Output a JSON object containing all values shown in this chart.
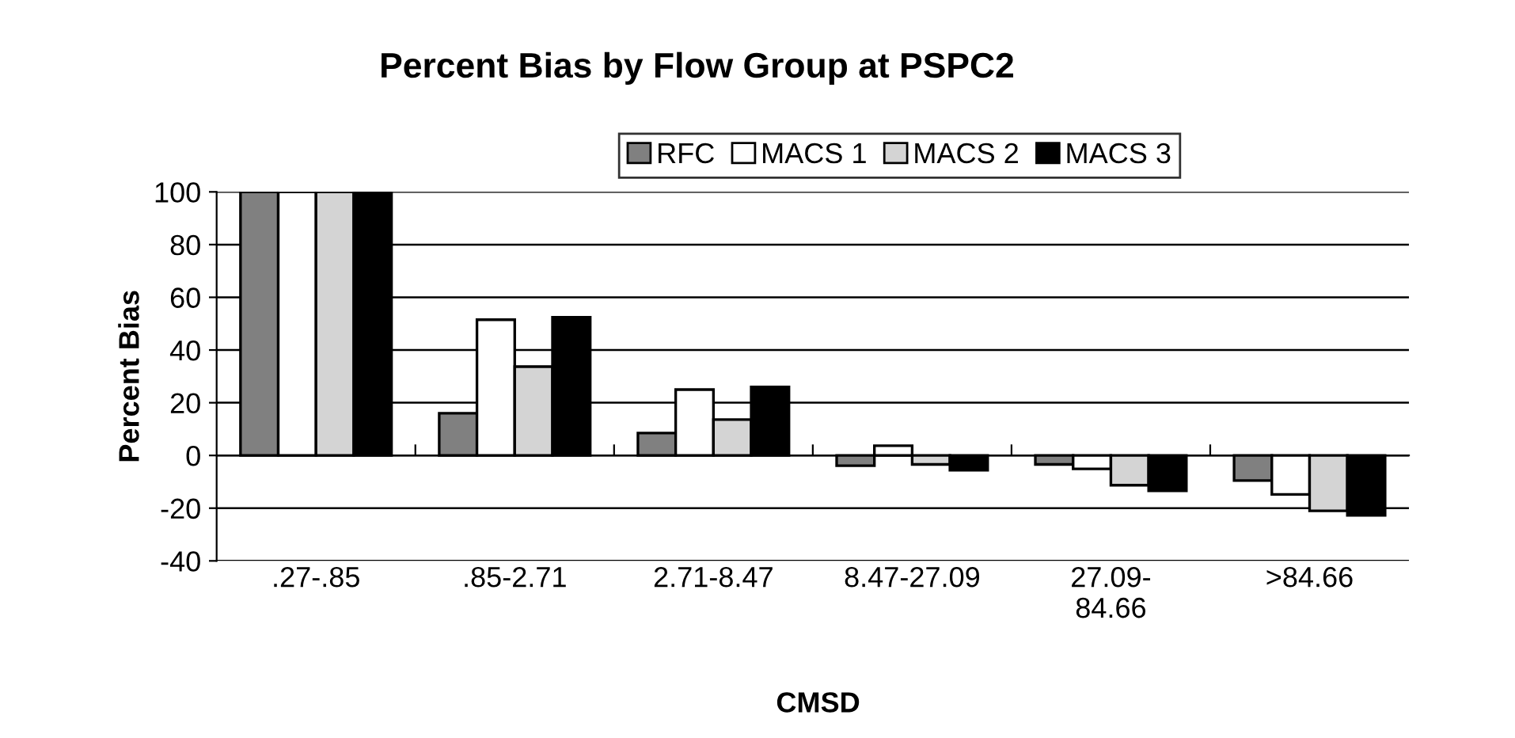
{
  "chart_data": {
    "type": "bar",
    "title": "Percent Bias by Flow Group at PSPC2",
    "xlabel": "CMSD",
    "ylabel": "Percent Bias",
    "categories": [
      ".27-.85",
      ".85-2.71",
      "2.71-8.47",
      "8.47-27.09",
      "27.09-\n84.66",
      ">84.66"
    ],
    "series": [
      {
        "name": "RFC",
        "color": "#808080",
        "values": [
          100,
          16,
          8.5,
          -3.9,
          -3.4,
          -9.5
        ]
      },
      {
        "name": "MACS 1",
        "color": "#ffffff",
        "values": [
          100,
          51.5,
          25,
          3.7,
          -5.1,
          -14.8
        ]
      },
      {
        "name": "MACS 2",
        "color": "#d4d4d4",
        "values": [
          100,
          33.7,
          13.6,
          -3.4,
          -11.3,
          -21
        ]
      },
      {
        "name": "MACS 3",
        "color": "#000000",
        "values": [
          100,
          52.4,
          26,
          -5.6,
          -13.4,
          -22.7
        ]
      }
    ],
    "ylim": [
      -40,
      100
    ],
    "yticks": [
      -40,
      -20,
      0,
      20,
      40,
      60,
      80,
      100
    ],
    "grid": "y",
    "legend": "top right"
  }
}
